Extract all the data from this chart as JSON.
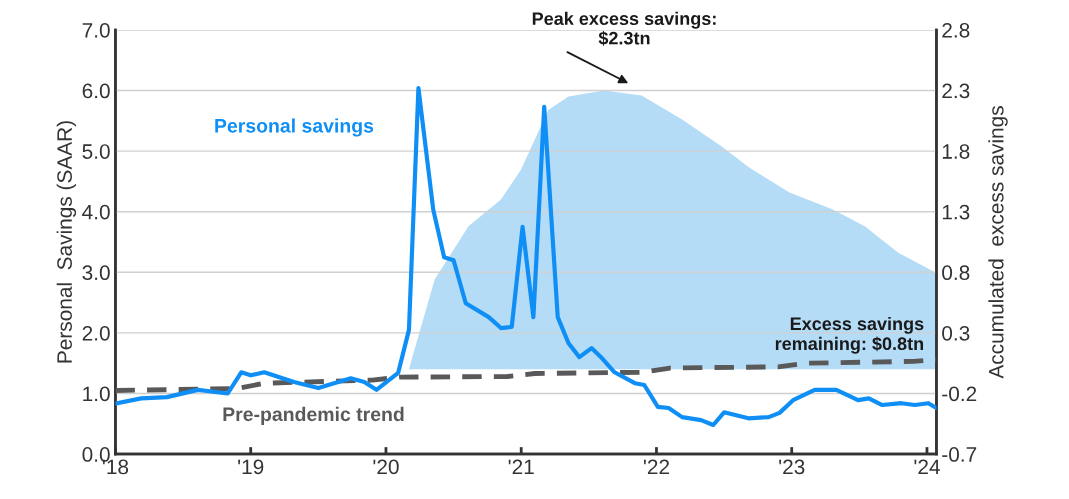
{
  "chart_data": {
    "type": "line",
    "ylabel": "Personal  Savings (SAAR)",
    "y2label": "Accumulated  excess savings",
    "xlim": [
      2018,
      2024.07
    ],
    "xticks": [
      {
        "value": 2018,
        "label": "'18"
      },
      {
        "value": 2019,
        "label": "'19"
      },
      {
        "value": 2020,
        "label": "'20"
      },
      {
        "value": 2021,
        "label": "'21"
      },
      {
        "value": 2022,
        "label": "'22"
      },
      {
        "value": 2023,
        "label": "'23"
      },
      {
        "value": 2024,
        "label": "'24"
      }
    ],
    "ylim": [
      0,
      7
    ],
    "yticks": [
      {
        "value": 0,
        "label": "0.0"
      },
      {
        "value": 1,
        "label": "1.0"
      },
      {
        "value": 2,
        "label": "2.0"
      },
      {
        "value": 3,
        "label": "3.0"
      },
      {
        "value": 4,
        "label": "4.0"
      },
      {
        "value": 5,
        "label": "5.0"
      },
      {
        "value": 6,
        "label": "6.0"
      },
      {
        "value": 7,
        "label": "7.0"
      }
    ],
    "y2lim": [
      -0.7,
      2.8
    ],
    "y2ticks": [
      -0.7,
      -0.2,
      0.3,
      0.8,
      1.3,
      1.8,
      2.3,
      2.8
    ],
    "grid": "y",
    "series": [
      {
        "type": "area",
        "axis": "y2",
        "color": "#b5dcf7",
        "x": [
          2020.17,
          2020.19,
          2020.36,
          2020.61,
          2020.85,
          2021.0,
          2021.2,
          2021.35,
          2021.61,
          2021.89,
          2022.19,
          2022.48,
          2022.68,
          2022.98,
          2023.3,
          2023.54,
          2023.79,
          2024.06
        ],
        "values": [
          0,
          0.08,
          0.74,
          1.18,
          1.4,
          1.65,
          2.14,
          2.25,
          2.3,
          2.26,
          2.06,
          1.84,
          1.67,
          1.46,
          1.32,
          1.18,
          0.96,
          0.8
        ]
      },
      {
        "name": "Pre-pandemic trend",
        "color": "#595959",
        "line_style": "dashed",
        "x": [
          2018.0,
          2018.9,
          2019.1,
          2019.9,
          2020.1,
          2020.9,
          2021.1,
          2021.9,
          2022.1,
          2022.9,
          2023.1,
          2023.9,
          2024.07
        ],
        "values": [
          1.05,
          1.08,
          1.17,
          1.22,
          1.27,
          1.28,
          1.33,
          1.35,
          1.42,
          1.44,
          1.5,
          1.53,
          1.56
        ]
      },
      {
        "name": "Personal savings",
        "color": "#0f8ff5",
        "line_style": "solid",
        "x": [
          2018.01,
          2018.19,
          2018.38,
          2018.61,
          2018.83,
          2018.93,
          2019.0,
          2019.1,
          2019.32,
          2019.5,
          2019.74,
          2019.84,
          2019.93,
          2020.09,
          2020.17,
          2020.24,
          2020.35,
          2020.43,
          2020.5,
          2020.59,
          2020.76,
          2020.85,
          2020.93,
          2021.01,
          2021.09,
          2021.17,
          2021.27,
          2021.35,
          2021.43,
          2021.52,
          2021.59,
          2021.69,
          2021.84,
          2021.91,
          2022.01,
          2022.09,
          2022.19,
          2022.33,
          2022.42,
          2022.5,
          2022.68,
          2022.83,
          2022.91,
          2023.01,
          2023.17,
          2023.33,
          2023.49,
          2023.57,
          2023.67,
          2023.81,
          2023.91,
          2024.01,
          2024.07
        ],
        "values": [
          0.84,
          0.92,
          0.94,
          1.06,
          1.0,
          1.35,
          1.3,
          1.35,
          1.19,
          1.09,
          1.25,
          1.19,
          1.06,
          1.34,
          2.05,
          6.04,
          4.03,
          3.25,
          3.2,
          2.49,
          2.26,
          2.08,
          2.1,
          3.75,
          2.26,
          5.73,
          2.26,
          1.83,
          1.6,
          1.75,
          1.6,
          1.35,
          1.17,
          1.14,
          0.78,
          0.76,
          0.61,
          0.56,
          0.48,
          0.69,
          0.59,
          0.61,
          0.68,
          0.89,
          1.06,
          1.06,
          0.89,
          0.92,
          0.81,
          0.84,
          0.81,
          0.84,
          0.76
        ]
      }
    ],
    "annotations": [
      "Peak excess savings:\n$2.3tn",
      "Excess savings\nremaining: $0.8tn"
    ]
  }
}
